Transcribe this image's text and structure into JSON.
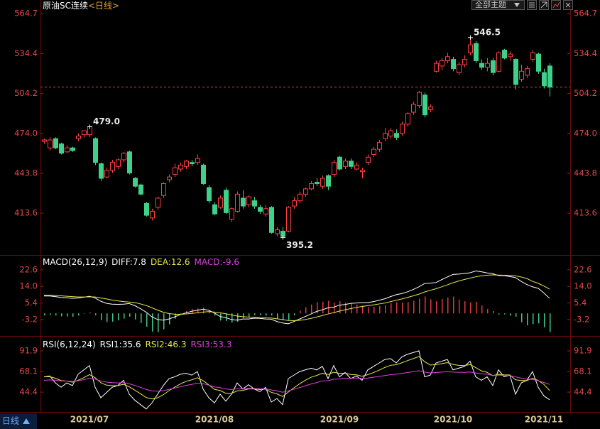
{
  "header": {
    "symbol": "原油SC连续",
    "period": "<日线>",
    "theme_button": "全部主题"
  },
  "footer": {
    "period_button": "日线"
  },
  "chart_data": [
    {
      "type": "candlestick",
      "categories": [
        null,
        null,
        null,
        null,
        null,
        null,
        null,
        null,
        "2021/07",
        null,
        null,
        null,
        null,
        null,
        null,
        null,
        null,
        null,
        null,
        null,
        null,
        null,
        null,
        null,
        null,
        null,
        null,
        null,
        null,
        null,
        "2021/08",
        null,
        null,
        null,
        null,
        null,
        null,
        null,
        null,
        null,
        null,
        null,
        null,
        null,
        null,
        null,
        null,
        null,
        null,
        null,
        null,
        null,
        "2021/09",
        null,
        null,
        null,
        null,
        null,
        null,
        null,
        null,
        null,
        null,
        null,
        null,
        null,
        null,
        null,
        null,
        null,
        null,
        null,
        "2021/10",
        null,
        null,
        null,
        null,
        null,
        null,
        null,
        null,
        null,
        null,
        null,
        null,
        null,
        null,
        null,
        "2021/11",
        null
      ],
      "open": [
        468,
        463,
        470,
        466,
        460,
        463,
        470,
        473,
        473,
        470,
        451,
        441,
        446,
        449,
        454,
        460,
        440,
        435,
        421,
        410,
        418,
        427,
        439,
        443,
        447,
        449,
        452,
        452,
        450,
        433,
        420,
        418,
        431,
        409,
        415,
        425,
        420,
        423,
        418,
        413,
        418,
        398,
        400,
        400,
        419,
        423,
        428,
        432,
        437,
        434,
        442,
        443,
        456,
        449,
        453,
        447,
        445,
        452,
        458,
        462,
        470,
        472,
        474,
        474,
        481,
        490,
        495,
        503,
        492,
        521,
        525,
        529,
        530,
        520,
        526,
        535,
        542,
        527,
        524,
        529,
        521,
        537,
        532,
        530,
        515,
        518,
        530,
        534,
        520,
        525
      ],
      "high": [
        470,
        471,
        471,
        467,
        465,
        464,
        474,
        476,
        479,
        471,
        452,
        448,
        454,
        455,
        460,
        461,
        441,
        436,
        422,
        417,
        426,
        437,
        443,
        451,
        452,
        454,
        454,
        458,
        451,
        435,
        422,
        427,
        433,
        418,
        430,
        431,
        427,
        426,
        420,
        420,
        419,
        403,
        403,
        419,
        426,
        430,
        433,
        438,
        440,
        442,
        443,
        454,
        457,
        455,
        455,
        452,
        448,
        458,
        464,
        469,
        478,
        478,
        477,
        483,
        490,
        498,
        506,
        505,
        496,
        529,
        531,
        535,
        532,
        528,
        533,
        546.5,
        544,
        530,
        531,
        531,
        536,
        538,
        536,
        531,
        526,
        525,
        537,
        535,
        523,
        527
      ],
      "low": [
        466,
        461,
        462,
        458,
        459,
        460,
        468,
        471,
        471,
        450,
        438,
        440,
        444,
        447,
        452,
        443,
        433,
        427,
        411,
        408,
        416,
        425,
        437,
        441,
        445,
        447,
        449,
        450,
        435,
        421,
        412,
        417,
        413,
        407,
        414,
        417,
        418,
        417,
        413,
        411,
        398,
        396,
        395.2,
        399,
        417,
        421,
        426,
        431,
        434,
        432,
        431,
        441,
        446,
        447,
        447,
        446,
        440,
        450,
        456,
        460,
        468,
        470,
        469,
        472,
        479,
        488,
        493,
        486,
        490,
        520,
        522,
        527,
        521,
        518,
        524,
        533,
        527,
        522,
        521,
        518,
        520,
        530,
        529,
        507,
        513,
        516,
        528,
        519,
        508,
        502
      ],
      "close": [
        469,
        469,
        463,
        459,
        463,
        461,
        472,
        476,
        479,
        452,
        440,
        446,
        452,
        454,
        459,
        444,
        434,
        428,
        412,
        415,
        425,
        436,
        441,
        448,
        450,
        453,
        451,
        455,
        436,
        423,
        413,
        425,
        414,
        417,
        428,
        419,
        426,
        419,
        415,
        417,
        399,
        401,
        396,
        418,
        423,
        428,
        432,
        436,
        436,
        440,
        434,
        452,
        447,
        453,
        449,
        450,
        446,
        456,
        462,
        467,
        474,
        476,
        471,
        481,
        489,
        496,
        505,
        488,
        494,
        527,
        529,
        532,
        523,
        526,
        530,
        541,
        529,
        524,
        527,
        520,
        535,
        531,
        534,
        511,
        521,
        523,
        535,
        521,
        510,
        509
      ],
      "up_color": "#ff4040",
      "down_color": "#3fd08a",
      "ylim": [
        382.5,
        567.4
      ],
      "yticks": [
        564.7,
        534.4,
        504.2,
        {
          "value": 474,
          "label": "474.0"
        },
        443.8,
        413.6
      ],
      "annotations": [
        {
          "text": "479.0",
          "value": 479,
          "color": "#ff5050",
          "position": "right"
        },
        {
          "text": "546.5",
          "value": 546.5,
          "color": "#ff5050",
          "position": "above"
        },
        {
          "text": "395.2",
          "value": 395.2,
          "color": "#3fd08a",
          "position": "below"
        }
      ]
    },
    {
      "type": "macd",
      "title": "MACD(26,12,9)",
      "ylim": [
        -10.6,
        29.2
      ],
      "yticks": [
        22.6,
        {
          "value": 14,
          "label": "14.0"
        },
        5.4,
        -3.2
      ],
      "series": [
        {
          "name": "DIFF:",
          "color": "#ffffff",
          "values": [
            9.0,
            9.0,
            8.7,
            8.3,
            8.1,
            7.8,
            8.0,
            8.4,
            8.9,
            8.0,
            6.3,
            5.2,
            4.8,
            4.7,
            4.8,
            5.1,
            4.0,
            2.4,
            0.6,
            -1.8,
            -3.2,
            -3.5,
            -2.9,
            -1.8,
            -0.6,
            0.3,
            1.1,
            1.6,
            2.2,
            1.6,
            0.2,
            -1.6,
            -2.2,
            -3.2,
            -3.5,
            -2.9,
            -2.9,
            -2.5,
            -2.6,
            -2.9,
            -3.0,
            -4.2,
            -5.0,
            -5.4,
            -4.2,
            -2.9,
            -1.6,
            -0.3,
            1.0,
            1.9,
            2.9,
            3.2,
            4.3,
            4.6,
            5.2,
            5.4,
            5.6,
            5.6,
            6.1,
            6.8,
            7.6,
            8.7,
            9.7,
            10.3,
            11.2,
            12.4,
            13.8,
            15.5,
            15.7,
            16.0,
            17.5,
            18.9,
            20.2,
            20.4,
            20.7,
            21.1,
            22.0,
            21.6,
            21.0,
            20.6,
            19.6,
            19.6,
            19.1,
            18.6,
            16.6,
            15.0,
            13.8,
            13.0,
            10.6,
            7.8
          ]
        },
        {
          "name": "DEA:",
          "color": "#e8e84a",
          "values": [
            9.5,
            9.4,
            9.3,
            9.1,
            8.9,
            8.7,
            8.5,
            8.5,
            8.6,
            8.5,
            8.0,
            7.5,
            6.9,
            6.5,
            6.1,
            5.9,
            5.6,
            4.9,
            4.1,
            2.9,
            1.7,
            0.6,
            -0.1,
            -0.4,
            -0.5,
            -0.3,
            0.0,
            0.3,
            0.7,
            0.9,
            0.7,
            0.3,
            -0.2,
            -0.8,
            -1.4,
            -1.7,
            -1.9,
            -2.0,
            -2.2,
            -2.3,
            -2.4,
            -2.8,
            -3.2,
            -3.7,
            -3.8,
            -3.6,
            -3.2,
            -2.6,
            -1.9,
            -1.1,
            -0.3,
            0.4,
            1.2,
            1.9,
            2.5,
            3.1,
            3.6,
            4.0,
            4.4,
            4.9,
            5.4,
            6.1,
            6.8,
            7.5,
            8.3,
            9.1,
            10.0,
            11.1,
            12.0,
            12.8,
            13.8,
            14.8,
            15.9,
            16.8,
            17.6,
            18.3,
            19.0,
            19.5,
            19.8,
            20.0,
            19.9,
            19.8,
            19.7,
            19.5,
            18.9,
            18.1,
            16.6,
            15.6,
            14.2,
            12.6
          ]
        },
        {
          "name": "MACD:",
          "color": "#e040e0",
          "type": "bar",
          "up_color": "#e03a3a",
          "down_color": "#3fc888",
          "values": [
            -1.0,
            -0.8,
            -1.1,
            -1.5,
            -1.6,
            -1.7,
            -1.1,
            -0.2,
            0.6,
            -0.9,
            -3.5,
            -4.5,
            -4.3,
            -3.6,
            -2.7,
            -1.7,
            -3.1,
            -5.0,
            -6.9,
            -9.4,
            -9.7,
            -8.3,
            -5.7,
            -2.8,
            -0.3,
            1.2,
            2.3,
            2.6,
            3.0,
            1.5,
            -1.1,
            -3.7,
            -3.9,
            -4.8,
            -4.3,
            -2.5,
            -2.0,
            -0.9,
            -0.9,
            -1.2,
            -1.1,
            -2.8,
            -3.5,
            -3.5,
            -0.9,
            1.4,
            3.2,
            4.6,
            5.8,
            6.1,
            6.5,
            5.6,
            6.3,
            5.5,
            5.4,
            4.6,
            4.0,
            3.2,
            3.4,
            3.8,
            4.3,
            5.2,
            5.8,
            5.6,
            5.9,
            6.6,
            7.6,
            8.8,
            7.3,
            6.3,
            7.5,
            8.2,
            8.7,
            7.2,
            6.3,
            5.7,
            6.0,
            4.1,
            2.3,
            1.2,
            -0.6,
            -0.5,
            -1.2,
            -1.7,
            -4.6,
            -6.2,
            -5.6,
            -5.2,
            -7.2,
            -9.6
          ]
        }
      ]
    },
    {
      "type": "line",
      "title": "RSI(6,12,24)",
      "ylim": [
        23.2,
        105
      ],
      "yticks": [
        91.9,
        68.1,
        44.4
      ],
      "series": [
        {
          "name": "RSI1:",
          "color": "#ffffff",
          "values": [
            62,
            63,
            55,
            50,
            55,
            52,
            65,
            70,
            75,
            50,
            38,
            44,
            50,
            52,
            58,
            42,
            35,
            30,
            25,
            32,
            42,
            52,
            60,
            62,
            65,
            66,
            64,
            68,
            48,
            38,
            32,
            42,
            34,
            42,
            55,
            48,
            53,
            48,
            45,
            50,
            33,
            37,
            30,
            60,
            64,
            68,
            70,
            72,
            70,
            74,
            60,
            75,
            62,
            67,
            60,
            63,
            58,
            70,
            74,
            78,
            82,
            83,
            78,
            85,
            88,
            90,
            92,
            62,
            64,
            78,
            80,
            82,
            70,
            72,
            74,
            80,
            62,
            58,
            62,
            52,
            70,
            62,
            64,
            42,
            55,
            58,
            68,
            50,
            40,
            35.6
          ]
        },
        {
          "name": "RSI2:",
          "color": "#e8e84a",
          "values": [
            62,
            62.3,
            60.4,
            57.8,
            57.1,
            55.8,
            58.1,
            61.1,
            64.6,
            61.0,
            55.2,
            52.4,
            51.8,
            51.9,
            53.4,
            50.5,
            46.6,
            42.5,
            38.1,
            36.6,
            37.9,
            41.4,
            46.1,
            50.1,
            53.8,
            56.8,
            58.6,
            60.9,
            57.7,
            52.8,
            47.6,
            46.2,
            43.1,
            42.8,
            45.9,
            46.4,
            48.0,
            48.0,
            47.3,
            47.9,
            44.2,
            42.4,
            39.3,
            44.5,
            49.4,
            54.0,
            58.0,
            61.5,
            63.6,
            66.2,
            64.7,
            67.3,
            66.0,
            66.2,
            64.7,
            64.3,
            62.7,
            64.5,
            66.9,
            69.7,
            72.8,
            75.3,
            76.0,
            78.2,
            80.7,
            83.0,
            85.3,
            79.5,
            75.6,
            76.2,
            77.2,
            78.4,
            76.3,
            75.2,
            74.9,
            76.2,
            72.6,
            68.9,
            67.2,
            63.4,
            65.0,
            64.3,
            64.2,
            58.7,
            57.8,
            57.8,
            60.4,
            57.8,
            53.3,
            46.3
          ]
        },
        {
          "name": "RSI3:",
          "color": "#e040e0",
          "values": [
            58,
            58.5,
            58.2,
            57.4,
            57.2,
            56.7,
            57.5,
            58.8,
            60.4,
            59.4,
            57.2,
            55.9,
            55.3,
            55.0,
            55.3,
            54.0,
            52.1,
            49.9,
            47.4,
            45.9,
            45.5,
            46.1,
            47.5,
            49.0,
            50.6,
            52.1,
            53.3,
            54.8,
            54.1,
            52.5,
            50.4,
            49.6,
            48.0,
            47.4,
            48.2,
            48.2,
            48.7,
            48.6,
            48.2,
            48.4,
            46.9,
            45.9,
            44.3,
            45.9,
            47.7,
            49.7,
            51.7,
            53.8,
            55.4,
            57.3,
            57.6,
            59.3,
            59.6,
            60.3,
            60.3,
            60.6,
            60.3,
            60.5,
            61.5,
            62.5,
            63.5,
            64.5,
            65,
            66,
            67,
            68,
            69,
            67.5,
            66.5,
            67,
            67.5,
            68,
            67.5,
            67.3,
            67.2,
            67.6,
            66.5,
            65.5,
            65,
            63.5,
            64,
            63.5,
            63.3,
            62,
            60.5,
            59.5,
            59,
            57.5,
            55.5,
            53.3
          ]
        }
      ]
    }
  ]
}
